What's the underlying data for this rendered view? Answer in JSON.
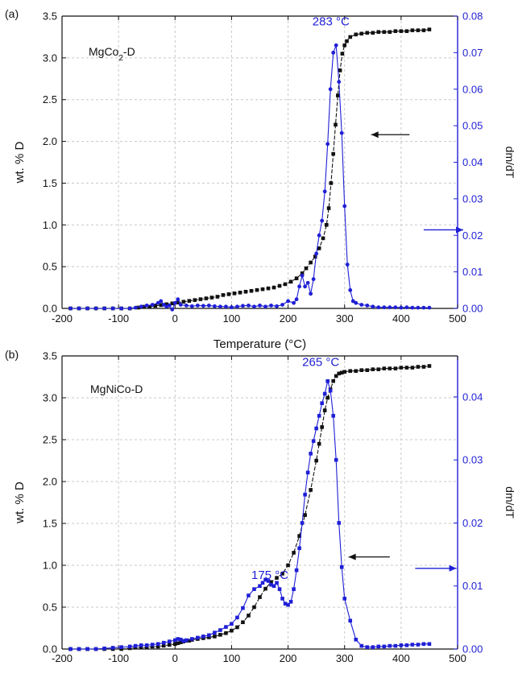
{
  "colors": {
    "wt": "#111111",
    "dmdt": "#1f1fd6",
    "grid": "#c8c8c8",
    "arrow_left": "#111111",
    "arrow_right": "#1f1fd6"
  },
  "chart_data": [
    {
      "type": "line",
      "panel": "(a)",
      "sample": "MgCo",
      "sample_sub": "2",
      "sample_suffix": "-D",
      "xlabel": "Temperature (°C)",
      "ylabel": "wt. % D",
      "y2label": "dm/dT",
      "xlim": [
        -200,
        500
      ],
      "ylim": [
        0,
        3.5
      ],
      "y2lim": [
        0,
        0.08
      ],
      "xticks": [
        "-200",
        "-100",
        "0",
        "100",
        "200",
        "300",
        "400",
        "500"
      ],
      "yticks": [
        "0.0",
        "0.5",
        "1.0",
        "1.5",
        "2.0",
        "2.5",
        "3.0",
        "3.5"
      ],
      "y2ticks": [
        "0.00",
        "0.01",
        "0.02",
        "0.03",
        "0.04",
        "0.05",
        "0.06",
        "0.07",
        "0.08"
      ],
      "grid": true,
      "annotations": [
        {
          "text": "283 °C",
          "x": 283,
          "axis": "y2",
          "y": 0.0775
        }
      ],
      "arrows": [
        {
          "direction": "left",
          "axis": "y",
          "x_from": 415,
          "x_to": 347,
          "y": 2.08
        },
        {
          "direction": "right",
          "axis": "y2",
          "x_from": 440,
          "x_to": 510,
          "y": 0.0215
        }
      ],
      "series": [
        {
          "axis": "y",
          "color": "#111111",
          "marker": "square",
          "x": [
            -185,
            -170,
            -155,
            -140,
            -125,
            -110,
            -95,
            -80,
            -65,
            -55,
            -45,
            -35,
            -25,
            -15,
            -5,
            5,
            15,
            25,
            35,
            45,
            55,
            65,
            75,
            85,
            95,
            105,
            115,
            125,
            135,
            145,
            155,
            165,
            175,
            185,
            195,
            205,
            215,
            225,
            232,
            240,
            248,
            255,
            262,
            268,
            272,
            276,
            280,
            284,
            288,
            292,
            296,
            300,
            304,
            310,
            320,
            330,
            340,
            350,
            360,
            370,
            380,
            390,
            400,
            410,
            420,
            430,
            440,
            450
          ],
          "y": [
            0.0,
            0.0,
            0.0,
            0.0,
            0.0,
            0.0,
            0.0,
            0.0,
            0.01,
            0.02,
            0.02,
            0.03,
            0.04,
            0.05,
            0.06,
            0.07,
            0.08,
            0.09,
            0.1,
            0.11,
            0.12,
            0.13,
            0.14,
            0.16,
            0.17,
            0.18,
            0.19,
            0.2,
            0.21,
            0.22,
            0.23,
            0.24,
            0.25,
            0.27,
            0.29,
            0.32,
            0.36,
            0.42,
            0.48,
            0.55,
            0.62,
            0.72,
            0.84,
            1.0,
            1.2,
            1.5,
            1.85,
            2.2,
            2.55,
            2.85,
            3.05,
            3.15,
            3.2,
            3.25,
            3.28,
            3.29,
            3.3,
            3.3,
            3.31,
            3.31,
            3.31,
            3.32,
            3.32,
            3.32,
            3.33,
            3.33,
            3.33,
            3.34
          ]
        },
        {
          "axis": "y2",
          "color": "#1f1fd6",
          "marker": "circle",
          "x": [
            -185,
            -170,
            -155,
            -140,
            -125,
            -110,
            -95,
            -80,
            -70,
            -60,
            -50,
            -40,
            -30,
            -25,
            -20,
            -15,
            -10,
            -5,
            0,
            5,
            10,
            20,
            30,
            40,
            50,
            60,
            70,
            80,
            90,
            100,
            110,
            120,
            130,
            140,
            150,
            160,
            170,
            180,
            190,
            200,
            210,
            215,
            220,
            225,
            230,
            235,
            240,
            245,
            250,
            255,
            260,
            265,
            270,
            275,
            280,
            285,
            290,
            295,
            300,
            305,
            310,
            315,
            320,
            330,
            340,
            350,
            360,
            370,
            380,
            390,
            400,
            410,
            420,
            430,
            440,
            450
          ],
          "y": [
            0.0,
            0.0,
            0.0,
            0.0,
            0.0,
            0.0,
            0.0,
            0.0,
            0.0002,
            0.0005,
            0.0008,
            0.001,
            0.0015,
            0.002,
            0.001,
            0.0005,
            0.0008,
            -0.0003,
            0.0015,
            0.0025,
            0.001,
            0.0008,
            0.0006,
            0.0008,
            0.0007,
            0.0008,
            0.0006,
            0.0005,
            0.0005,
            0.0003,
            0.0005,
            0.0007,
            0.0008,
            0.0005,
            0.0008,
            0.0005,
            0.0008,
            0.0006,
            0.001,
            0.002,
            0.0015,
            0.0025,
            0.006,
            0.009,
            0.006,
            0.007,
            0.004,
            0.008,
            0.015,
            0.02,
            0.024,
            0.032,
            0.045,
            0.06,
            0.07,
            0.072,
            0.062,
            0.048,
            0.028,
            0.012,
            0.005,
            0.002,
            0.0015,
            0.001,
            0.0008,
            0.0005,
            0.0003,
            0.0003,
            0.0003,
            0.0003,
            0.0002,
            0.0003,
            0.0002,
            0.0002,
            0.0002,
            0.0002
          ]
        }
      ]
    },
    {
      "type": "line",
      "panel": "(b)",
      "sample": "MgNiCo-D",
      "xlabel": "",
      "ylabel": "wt. % D",
      "y2label": "dm/dT",
      "xlim": [
        -200,
        500
      ],
      "ylim": [
        0,
        3.5
      ],
      "y2lim": [
        0,
        0.0465
      ],
      "xticks": [
        "-200",
        "-100",
        "0",
        "100",
        "200",
        "300",
        "400",
        "500"
      ],
      "yticks": [
        "0.0",
        "0.5",
        "1.0",
        "1.5",
        "2.0",
        "2.5",
        "3.0",
        "3.5"
      ],
      "y2ticks": [
        "0.00",
        "0.01",
        "0.02",
        "0.03",
        "0.04"
      ],
      "grid": true,
      "annotations": [
        {
          "text": "265 °C",
          "x": 265,
          "axis": "y2",
          "y": 0.0449
        },
        {
          "text": "175 °C",
          "x": 175,
          "axis": "y2",
          "y": 0.0111
        }
      ],
      "arrows": [
        {
          "direction": "left",
          "axis": "y",
          "x_from": 380,
          "x_to": 307,
          "y": 1.1
        },
        {
          "direction": "right",
          "axis": "y2",
          "x_from": 425,
          "x_to": 498,
          "y": 0.0128
        }
      ],
      "series": [
        {
          "axis": "y",
          "color": "#111111",
          "marker": "square",
          "x": [
            -185,
            -170,
            -155,
            -140,
            -125,
            -110,
            -95,
            -80,
            -70,
            -60,
            -50,
            -40,
            -30,
            -20,
            -10,
            0,
            5,
            10,
            15,
            20,
            25,
            30,
            40,
            50,
            60,
            70,
            80,
            90,
            100,
            110,
            120,
            130,
            140,
            150,
            160,
            170,
            180,
            190,
            200,
            210,
            220,
            230,
            240,
            250,
            255,
            260,
            265,
            270,
            275,
            280,
            285,
            290,
            295,
            300,
            310,
            320,
            330,
            340,
            350,
            360,
            370,
            380,
            390,
            400,
            410,
            420,
            430,
            440,
            450
          ],
          "y": [
            0.0,
            0.0,
            0.0,
            0.0,
            0.0,
            0.0,
            0.0,
            0.01,
            0.02,
            0.02,
            0.02,
            0.03,
            0.03,
            0.04,
            0.05,
            0.06,
            0.07,
            0.08,
            0.09,
            0.1,
            0.1,
            0.11,
            0.12,
            0.13,
            0.14,
            0.15,
            0.17,
            0.19,
            0.22,
            0.26,
            0.32,
            0.4,
            0.5,
            0.62,
            0.72,
            0.8,
            0.85,
            0.9,
            1.0,
            1.15,
            1.35,
            1.6,
            1.9,
            2.25,
            2.45,
            2.65,
            2.85,
            3.0,
            3.1,
            3.2,
            3.26,
            3.29,
            3.3,
            3.31,
            3.32,
            3.32,
            3.33,
            3.33,
            3.34,
            3.34,
            3.35,
            3.35,
            3.35,
            3.36,
            3.36,
            3.36,
            3.37,
            3.37,
            3.38
          ]
        },
        {
          "axis": "y2",
          "color": "#1f1fd6",
          "marker": "square",
          "x": [
            -185,
            -170,
            -155,
            -140,
            -125,
            -110,
            -95,
            -80,
            -70,
            -60,
            -50,
            -40,
            -30,
            -20,
            -10,
            0,
            5,
            10,
            15,
            20,
            30,
            40,
            50,
            60,
            70,
            80,
            90,
            100,
            110,
            120,
            130,
            140,
            150,
            155,
            160,
            165,
            170,
            175,
            180,
            185,
            190,
            195,
            200,
            205,
            210,
            215,
            220,
            225,
            230,
            235,
            240,
            245,
            250,
            255,
            260,
            265,
            270,
            275,
            280,
            285,
            290,
            295,
            300,
            310,
            320,
            330,
            340,
            350,
            360,
            370,
            380,
            390,
            400,
            410,
            420,
            430,
            440,
            450
          ],
          "y": [
            0.0,
            0.0,
            0.0,
            0.0,
            0.0001,
            0.0002,
            0.0003,
            0.0004,
            0.0005,
            0.0006,
            0.0006,
            0.0007,
            0.0008,
            0.001,
            0.0012,
            0.0014,
            0.0016,
            0.0015,
            0.0013,
            0.0014,
            0.0016,
            0.0018,
            0.002,
            0.0022,
            0.0026,
            0.003,
            0.0035,
            0.004,
            0.005,
            0.0065,
            0.0085,
            0.0095,
            0.01,
            0.0105,
            0.011,
            0.0108,
            0.0102,
            0.01,
            0.0105,
            0.0095,
            0.008,
            0.0072,
            0.007,
            0.0075,
            0.0095,
            0.0125,
            0.016,
            0.02,
            0.0245,
            0.028,
            0.031,
            0.033,
            0.035,
            0.037,
            0.039,
            0.0405,
            0.0425,
            0.041,
            0.037,
            0.03,
            0.02,
            0.013,
            0.008,
            0.0045,
            0.0015,
            0.0005,
            0.0003,
            0.0003,
            0.0004,
            0.0004,
            0.0005,
            0.0005,
            0.0006,
            0.0006,
            0.0007,
            0.0007,
            0.0008,
            0.0008
          ]
        }
      ]
    }
  ]
}
